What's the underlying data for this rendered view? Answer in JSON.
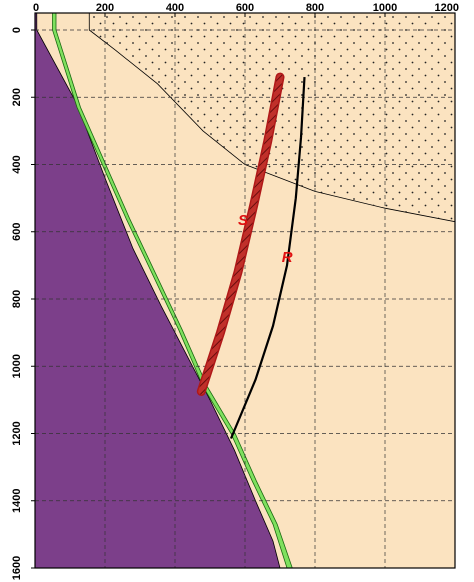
{
  "figure": {
    "x_ticks": [
      "0",
      "200",
      "400",
      "600",
      "800",
      "1000",
      "1200"
    ],
    "y_ticks": [
      "0",
      "200",
      "400",
      "600",
      "800",
      "1000",
      "1200",
      "1400",
      "1600"
    ],
    "x_range": [
      0,
      1200
    ],
    "y_range": [
      0,
      1600
    ],
    "grid": true,
    "colors": {
      "background": "#fbe3c0",
      "basement": "#7c3f8a",
      "fault_zone": "#7ee05e",
      "well_s": "#b01818",
      "well_r": "#000000",
      "label": "#e01010",
      "dotted_layer": "#fbe3c0"
    }
  },
  "wells": [
    {
      "label": "S",
      "points": [
        [
          700,
          140
        ],
        [
          665,
          330
        ],
        [
          625,
          520
        ],
        [
          580,
          720
        ],
        [
          530,
          900
        ],
        [
          475,
          1075
        ]
      ]
    },
    {
      "label": "R",
      "points": [
        [
          770,
          140
        ],
        [
          760,
          320
        ],
        [
          745,
          500
        ],
        [
          720,
          700
        ],
        [
          680,
          880
        ],
        [
          630,
          1040
        ],
        [
          560,
          1215
        ]
      ]
    }
  ],
  "units": {
    "basement": {
      "boundary": [
        [
          5,
          0
        ],
        [
          120,
          220
        ],
        [
          200,
          440
        ],
        [
          280,
          650
        ],
        [
          360,
          820
        ],
        [
          430,
          960
        ],
        [
          500,
          1100
        ],
        [
          570,
          1250
        ],
        [
          630,
          1400
        ],
        [
          680,
          1520
        ],
        [
          700,
          1600
        ]
      ]
    },
    "fault_zone": {
      "left": [
        [
          50,
          0
        ],
        [
          120,
          230
        ],
        [
          260,
          560
        ],
        [
          410,
          890
        ],
        [
          480,
          1060
        ],
        [
          560,
          1200
        ],
        [
          620,
          1340
        ],
        [
          680,
          1470
        ],
        [
          720,
          1600
        ]
      ],
      "right": [
        [
          60,
          0
        ],
        [
          130,
          230
        ],
        [
          270,
          560
        ],
        [
          420,
          890
        ],
        [
          492,
          1060
        ],
        [
          572,
          1200
        ],
        [
          632,
          1340
        ],
        [
          692,
          1470
        ],
        [
          735,
          1600
        ]
      ]
    },
    "dotted_layer": {
      "bottom": [
        [
          155,
          0
        ],
        [
          230,
          60
        ],
        [
          350,
          160
        ],
        [
          480,
          300
        ],
        [
          600,
          400
        ],
        [
          800,
          480
        ],
        [
          1000,
          530
        ],
        [
          1200,
          570
        ]
      ]
    }
  }
}
